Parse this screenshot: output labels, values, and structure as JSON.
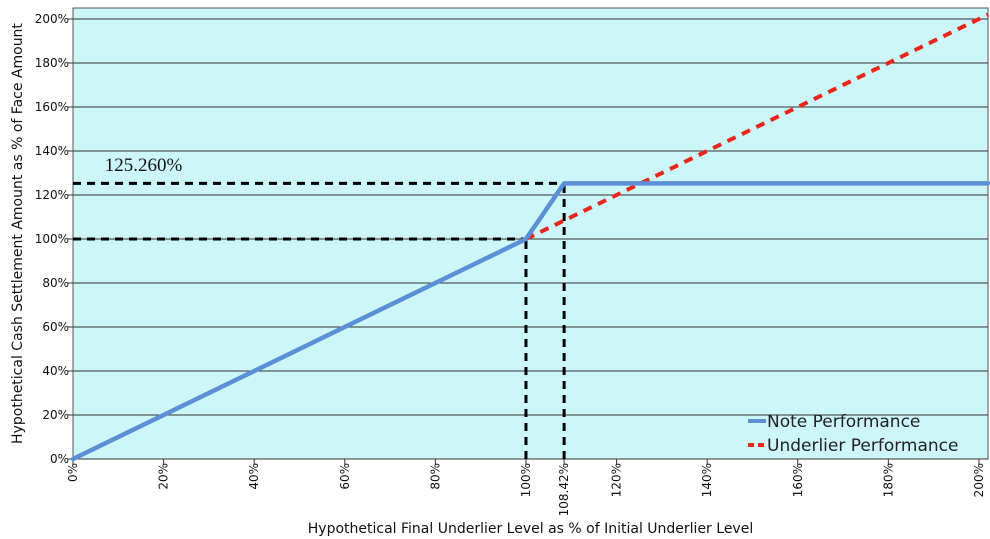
{
  "chart_data": {
    "type": "line",
    "title": "",
    "xlabel": "Hypothetical Final Underlier Level as % of Initial Underlier Level",
    "ylabel": "Hypothetical Cash Settlement Amount as % of Face Amount",
    "xlim": [
      0,
      202
    ],
    "ylim": [
      0,
      205
    ],
    "x_ticks": [
      "0%",
      "20%",
      "40%",
      "60%",
      "80%",
      "100%",
      "108.42%",
      "120%",
      "140%",
      "160%",
      "180%",
      "200%"
    ],
    "x_tick_values": [
      0,
      20,
      40,
      60,
      80,
      100,
      108.42,
      120,
      140,
      160,
      180,
      200
    ],
    "y_ticks": [
      "0%",
      "20%",
      "40%",
      "60%",
      "80%",
      "100%",
      "120%",
      "140%",
      "160%",
      "180%",
      "200%"
    ],
    "y_tick_values": [
      0,
      20,
      40,
      60,
      80,
      100,
      120,
      140,
      160,
      180,
      200
    ],
    "grid": "horizontal",
    "background_color": "#ccf6f8",
    "series": [
      {
        "name": "Note Performance",
        "color": "#5b8fd6",
        "style": "solid",
        "points": [
          [
            0,
            0
          ],
          [
            100,
            100
          ],
          [
            108.42,
            125.26
          ],
          [
            202,
            125.26
          ]
        ]
      },
      {
        "name": "Underlier Performance",
        "color": "#e8261c",
        "style": "dashed",
        "points": [
          [
            100,
            100
          ],
          [
            202,
            202
          ]
        ]
      }
    ],
    "reference_lines": [
      {
        "points": [
          [
            0,
            125.26
          ],
          [
            108.42,
            125.26
          ]
        ],
        "color": "#000000",
        "style": "dashed"
      },
      {
        "points": [
          [
            0,
            100
          ],
          [
            100,
            100
          ]
        ],
        "color": "#000000",
        "style": "dashed"
      },
      {
        "points": [
          [
            100,
            0
          ],
          [
            100,
            100
          ]
        ],
        "color": "#000000",
        "style": "dashed"
      },
      {
        "points": [
          [
            108.42,
            0
          ],
          [
            108.42,
            125.26
          ]
        ],
        "color": "#000000",
        "style": "dashed"
      }
    ],
    "annotations": [
      {
        "text": "125.260%",
        "x": 7,
        "y": 131
      }
    ],
    "legend_position": "bottom-right"
  }
}
